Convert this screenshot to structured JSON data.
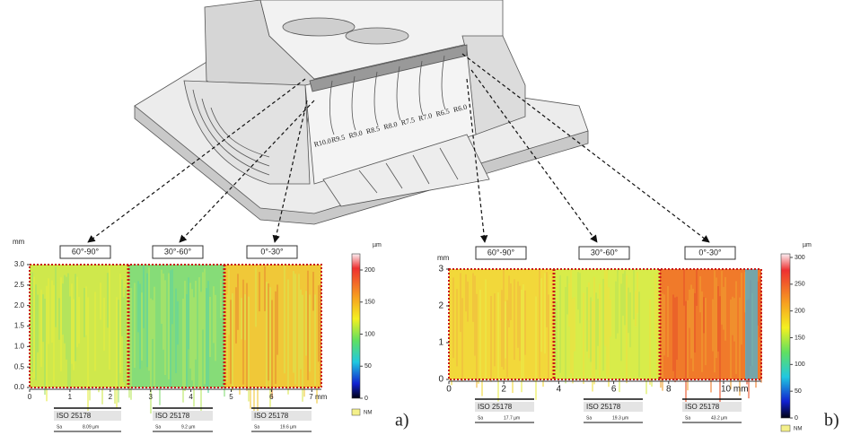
{
  "figure": {
    "model_labels": [
      "R10.0",
      "R9.5",
      "R9.0",
      "R8.5",
      "R8.0",
      "R7.5",
      "R7.0",
      "R6.5",
      "R6.0"
    ],
    "panels": [
      {
        "tag": "a)",
        "y_unit": "mm",
        "yticks": [
          "3.0",
          "2.5",
          "2.0",
          "1.5",
          "1.0",
          "0.5",
          "0.0"
        ],
        "xticks": [
          "0",
          "1",
          "2",
          "3",
          "4",
          "5",
          "6",
          "7 mm"
        ],
        "colorbar_unit": "µm",
        "colorbar_ticks": [
          "200",
          "150",
          "100",
          "50",
          "0"
        ],
        "no_measure": "NM",
        "zones": [
          {
            "label": "60°-90°",
            "standard": "ISO 25178",
            "param": "Sa",
            "value": "8.09 µm"
          },
          {
            "label": "30°-60°",
            "standard": "ISO 25178",
            "param": "Sa",
            "value": "9.2 µm"
          },
          {
            "label": "0°-30°",
            "standard": "ISO 25178",
            "param": "Sa",
            "value": "19.6 µm"
          }
        ]
      },
      {
        "tag": "b)",
        "y_unit": "mm",
        "yticks": [
          "3",
          "2",
          "1",
          "0"
        ],
        "xticks": [
          "0",
          "2",
          "4",
          "6",
          "8",
          "10 mm"
        ],
        "colorbar_unit": "µm",
        "colorbar_ticks": [
          "300",
          "250",
          "200",
          "150",
          "100",
          "50",
          "0"
        ],
        "no_measure": "NM",
        "zones": [
          {
            "label": "60°-90°",
            "standard": "ISO 25178",
            "param": "Sa",
            "value": "17.7 µm"
          },
          {
            "label": "30°-60°",
            "standard": "ISO 25178",
            "param": "Sa",
            "value": "19.3 µm"
          },
          {
            "label": "0°-30°",
            "standard": "ISO 25178",
            "param": "Sa",
            "value": "43.2 µm"
          }
        ]
      }
    ]
  }
}
